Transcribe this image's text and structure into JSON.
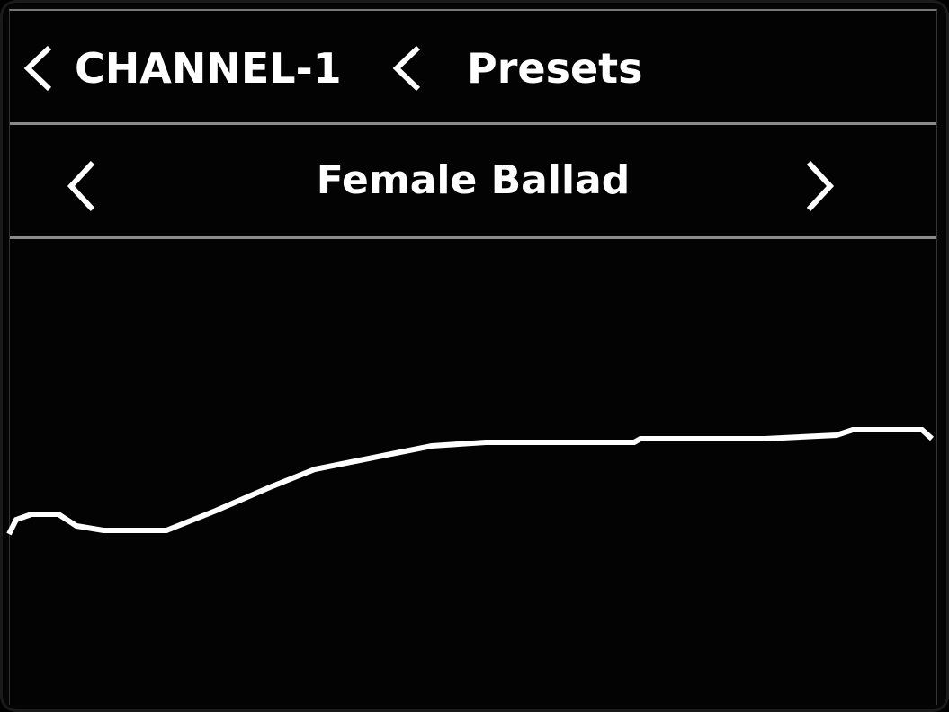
{
  "breadcrumb": {
    "items": [
      {
        "label": "CHANNEL-1",
        "icon": "chevron-left-icon"
      },
      {
        "label": "Presets",
        "icon": "chevron-left-icon"
      }
    ]
  },
  "preset_selector": {
    "current": "Female Ballad",
    "prev_icon": "chevron-left-icon",
    "next_icon": "chevron-right-icon"
  },
  "colors": {
    "background": "#000000",
    "foreground": "#ffffff",
    "divider": "#8a8a8a"
  }
}
